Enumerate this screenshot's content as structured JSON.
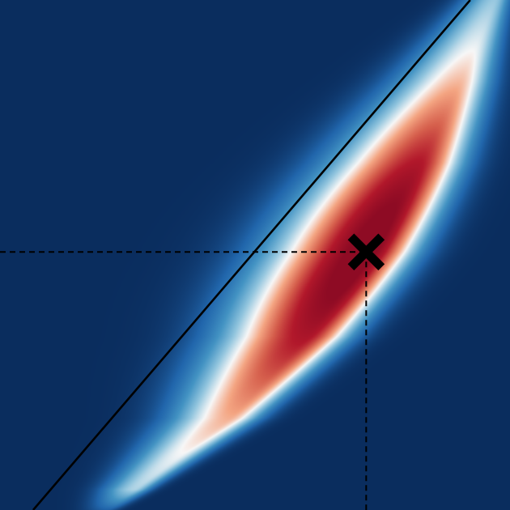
{
  "chart_data": {
    "type": "heatmap",
    "title": "",
    "xlabel": "",
    "ylabel": "",
    "grid": false,
    "legend": "none",
    "colormap": "RdBu_r",
    "colormap_stops": [
      "#0a2d5e",
      "#2166ac",
      "#4393c3",
      "#92c5de",
      "#f7f7f7",
      "#f4a582",
      "#d6604d",
      "#b2182b",
      "#8e0b24"
    ],
    "xlim": [
      0,
      1
    ],
    "ylim": [
      0,
      1
    ],
    "reference_line": {
      "style": "solid",
      "color": "#000000",
      "points": [
        [
          0.065,
          0.0
        ],
        [
          0.922,
          1.0
        ]
      ]
    },
    "marker": {
      "shape": "x",
      "color": "#000000",
      "x": 0.718,
      "y": 0.506
    },
    "guide_lines": {
      "style": "dashed",
      "color": "#000000",
      "from_axes_to_marker": true
    },
    "density_ridge": [
      [
        0.29,
        0.06
      ],
      [
        0.45,
        0.18
      ],
      [
        0.6,
        0.34
      ],
      [
        0.718,
        0.506
      ],
      [
        0.82,
        0.68
      ],
      [
        0.9,
        0.84
      ],
      [
        0.97,
        1.0
      ]
    ]
  }
}
